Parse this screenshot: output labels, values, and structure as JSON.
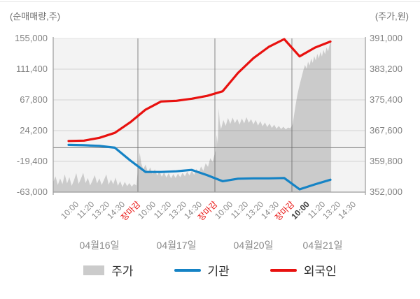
{
  "axes": {
    "left_title": "(순매매량,주)",
    "right_title": "(주가,원)",
    "left_ticks": [
      "155,000",
      "111,400",
      "67,800",
      "24,200",
      "-19,400",
      "-63,000"
    ],
    "left_tick_values": [
      155000,
      111400,
      67800,
      24200,
      -19400,
      -63000
    ],
    "left_range": [
      -63000,
      155000
    ],
    "right_ticks": [
      "391,000",
      "383,200",
      "375,400",
      "367,600",
      "359,800",
      "352,000"
    ],
    "right_tick_values": [
      391000,
      383200,
      375400,
      367600,
      359800,
      352000
    ],
    "right_range": [
      352000,
      391000
    ]
  },
  "x_axis": {
    "close_label": "장마감",
    "days": [
      {
        "date": "04월16일",
        "times": [
          "10:00",
          "11:20",
          "13:20",
          "14:30",
          "장마감"
        ],
        "first_time_bold": false
      },
      {
        "date": "04월17일",
        "times": [
          "10:00",
          "11:20",
          "13:20",
          "14:30",
          "장마감"
        ],
        "first_time_bold": false
      },
      {
        "date": "04월20일",
        "times": [
          "10:00",
          "11:20",
          "13:20",
          "14:30",
          "장마감"
        ],
        "first_time_bold": false
      },
      {
        "date": "04월21일",
        "times": [
          "10:00",
          "11:20",
          "13:20",
          "14:30"
        ],
        "first_time_bold": true
      }
    ]
  },
  "legend": [
    {
      "label": "주가",
      "swatch": "area",
      "color": "#cbcbcb"
    },
    {
      "label": "기관",
      "swatch": "line",
      "color": "#1583c5"
    },
    {
      "label": "외국인",
      "swatch": "line",
      "color": "#e8110f"
    }
  ],
  "chart_data": {
    "type": "area+line",
    "x_unit": "tick_index (0 = 10:00 04월16일, 5 ticks per day, data ends ~13:20 04월21일)",
    "grid": true,
    "legend_position": "bottom",
    "series": [
      {
        "name": "주가",
        "type": "area",
        "axis": "right",
        "color": "#cbcbcb",
        "points": [
          [
            -1,
            354500
          ],
          [
            -0.85,
            356000
          ],
          [
            -0.7,
            353800
          ],
          [
            -0.55,
            355500
          ],
          [
            -0.4,
            354000
          ],
          [
            -0.25,
            356500
          ],
          [
            -0.1,
            354200
          ],
          [
            0.05,
            355800
          ],
          [
            0.2,
            353600
          ],
          [
            0.35,
            355000
          ],
          [
            0.5,
            356800
          ],
          [
            0.65,
            354100
          ],
          [
            0.8,
            355400
          ],
          [
            0.95,
            356900
          ],
          [
            1.1,
            354300
          ],
          [
            1.25,
            355600
          ],
          [
            1.4,
            353700
          ],
          [
            1.55,
            354900
          ],
          [
            1.7,
            356300
          ],
          [
            1.85,
            354200
          ],
          [
            2,
            355500
          ],
          [
            2.15,
            353800
          ],
          [
            2.3,
            355100
          ],
          [
            2.45,
            356500
          ],
          [
            2.6,
            353900
          ],
          [
            2.75,
            355200
          ],
          [
            2.9,
            354000
          ],
          [
            3.05,
            355700
          ],
          [
            3.2,
            353600
          ],
          [
            3.35,
            354800
          ],
          [
            3.5,
            353300
          ],
          [
            3.65,
            354600
          ],
          [
            3.8,
            353500
          ],
          [
            3.95,
            354300
          ],
          [
            4.1,
            353400
          ],
          [
            4.25,
            354100
          ],
          [
            4.4,
            353700
          ],
          [
            4.55,
            359500
          ],
          [
            4.62,
            362000
          ],
          [
            4.72,
            359300
          ],
          [
            4.85,
            357800
          ],
          [
            5,
            359000
          ],
          [
            5.15,
            357000
          ],
          [
            5.3,
            358300
          ],
          [
            5.45,
            356600
          ],
          [
            5.6,
            357800
          ],
          [
            5.75,
            356200
          ],
          [
            5.9,
            357300
          ],
          [
            6.05,
            355900
          ],
          [
            6.2,
            357000
          ],
          [
            6.35,
            355700
          ],
          [
            6.5,
            356800
          ],
          [
            6.65,
            355500
          ],
          [
            6.8,
            356600
          ],
          [
            6.95,
            355600
          ],
          [
            7.1,
            356700
          ],
          [
            7.25,
            355800
          ],
          [
            7.4,
            356900
          ],
          [
            7.55,
            356000
          ],
          [
            7.7,
            357200
          ],
          [
            7.85,
            356200
          ],
          [
            8,
            357500
          ],
          [
            8.15,
            356400
          ],
          [
            8.3,
            357900
          ],
          [
            8.45,
            356800
          ],
          [
            8.6,
            358500
          ],
          [
            8.75,
            357400
          ],
          [
            8.9,
            359300
          ],
          [
            9.05,
            358400
          ],
          [
            9.2,
            360600
          ],
          [
            9.35,
            359700
          ],
          [
            9.45,
            361200
          ],
          [
            9.55,
            362500
          ],
          [
            9.62,
            366500
          ],
          [
            9.68,
            364200
          ],
          [
            9.75,
            373200
          ],
          [
            9.82,
            369500
          ],
          [
            9.9,
            368000
          ],
          [
            10.05,
            370300
          ],
          [
            10.2,
            368800
          ],
          [
            10.35,
            370800
          ],
          [
            10.5,
            369300
          ],
          [
            10.65,
            370900
          ],
          [
            10.8,
            369500
          ],
          [
            10.95,
            370600
          ],
          [
            11.1,
            369100
          ],
          [
            11.25,
            370700
          ],
          [
            11.4,
            369400
          ],
          [
            11.55,
            371000
          ],
          [
            11.7,
            369600
          ],
          [
            11.85,
            370500
          ],
          [
            12,
            369200
          ],
          [
            12.15,
            370300
          ],
          [
            12.3,
            368900
          ],
          [
            12.45,
            370000
          ],
          [
            12.6,
            368700
          ],
          [
            12.75,
            369700
          ],
          [
            12.9,
            368500
          ],
          [
            13.05,
            369400
          ],
          [
            13.2,
            368300
          ],
          [
            13.35,
            369100
          ],
          [
            13.5,
            368100
          ],
          [
            13.65,
            368800
          ],
          [
            13.8,
            368000
          ],
          [
            13.95,
            368600
          ],
          [
            14.1,
            367900
          ],
          [
            14.25,
            368400
          ],
          [
            14.4,
            368200
          ],
          [
            14.55,
            369200
          ],
          [
            14.65,
            371800
          ],
          [
            14.75,
            374300
          ],
          [
            14.85,
            376600
          ],
          [
            14.95,
            378400
          ],
          [
            15.05,
            380000
          ],
          [
            15.15,
            381500
          ],
          [
            15.25,
            383000
          ],
          [
            15.35,
            384300
          ],
          [
            15.45,
            383300
          ],
          [
            15.55,
            385100
          ],
          [
            15.65,
            384100
          ],
          [
            15.75,
            385900
          ],
          [
            15.85,
            384800
          ],
          [
            15.95,
            386500
          ],
          [
            16.05,
            385400
          ],
          [
            16.15,
            387100
          ],
          [
            16.25,
            385900
          ],
          [
            16.35,
            387600
          ],
          [
            16.45,
            386400
          ],
          [
            16.55,
            388100
          ],
          [
            16.65,
            387000
          ],
          [
            16.75,
            388700
          ],
          [
            16.85,
            387700
          ],
          [
            16.95,
            389500
          ],
          [
            17.05,
            390200
          ]
        ]
      },
      {
        "name": "기관",
        "type": "line",
        "axis": "left",
        "color": "#1583c5",
        "values": [
          4000,
          3500,
          2500,
          0,
          -18000,
          -34500,
          -34500,
          -33500,
          -31500,
          -39000,
          -47500,
          -44000,
          -43500,
          -43500,
          -43000,
          -59000,
          -52000,
          -45500
        ]
      },
      {
        "name": "외국인",
        "type": "line",
        "axis": "left",
        "color": "#e8110f",
        "values": [
          9500,
          10000,
          14000,
          21000,
          36000,
          54000,
          65500,
          66500,
          69500,
          73500,
          80000,
          106000,
          127000,
          143000,
          154000,
          129500,
          142000,
          150500
        ]
      }
    ]
  }
}
